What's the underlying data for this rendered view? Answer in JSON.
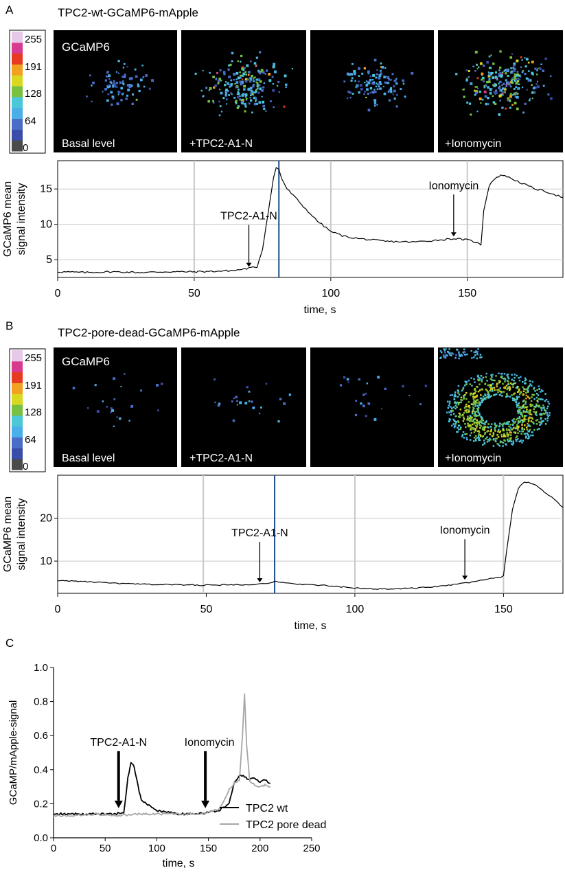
{
  "panels": [
    {
      "letter": "A",
      "title": "TPC2-wt-GCaMP6-mApple",
      "colorbar": {
        "ticks": [
          "255",
          "191",
          "128",
          "64",
          "0"
        ]
      },
      "images": [
        {
          "labels": [
            "GCaMP6",
            "Basal level"
          ],
          "intensity": 0.2,
          "mode": "spots"
        },
        {
          "labels": [
            "+TPC2-A1-N"
          ],
          "intensity": 0.75,
          "mode": "spots"
        },
        {
          "labels": [],
          "intensity": 0.35,
          "mode": "spots"
        },
        {
          "labels": [
            "+Ionomycin"
          ],
          "intensity": 0.85,
          "mode": "spots"
        }
      ]
    },
    {
      "letter": "B",
      "title": "TPC2-pore-dead-GCaMP6-mApple",
      "colorbar": {
        "ticks": [
          "255",
          "191",
          "128",
          "64",
          "0"
        ]
      },
      "images": [
        {
          "labels": [
            "GCaMP6",
            "Basal level"
          ],
          "intensity": 0.12,
          "mode": "sparse"
        },
        {
          "labels": [
            "+TPC2-A1-N"
          ],
          "intensity": 0.14,
          "mode": "sparse"
        },
        {
          "labels": [],
          "intensity": 0.1,
          "mode": "sparse"
        },
        {
          "labels": [
            "+Ionomycin"
          ],
          "intensity": 1.0,
          "mode": "ring"
        }
      ]
    },
    {
      "letter": "C"
    }
  ],
  "chart_data": [
    {
      "id": "A",
      "type": "line",
      "xlabel": "time, s",
      "ylabel": [
        "GCaMP6 mean",
        "signal intensity"
      ],
      "xlim": [
        0,
        185
      ],
      "ylim": [
        2.5,
        19
      ],
      "xticks": [
        0,
        50,
        100,
        150
      ],
      "yticks": [
        5,
        10,
        15
      ],
      "vlines_gray": [
        50,
        100,
        150
      ],
      "vline_blue": 81,
      "series": [
        {
          "color": "#000000",
          "x": [
            0,
            10,
            20,
            30,
            40,
            50,
            60,
            65,
            70,
            73,
            75,
            77,
            79,
            80,
            81,
            82,
            84,
            87,
            90,
            95,
            100,
            105,
            110,
            120,
            130,
            140,
            145,
            150,
            153,
            155,
            156,
            158,
            160,
            163,
            166,
            170,
            175,
            180,
            185
          ],
          "y": [
            3.3,
            3.2,
            3.3,
            3.2,
            3.3,
            3.3,
            3.4,
            3.5,
            3.8,
            4.0,
            6.5,
            11.5,
            16.5,
            18.0,
            17.8,
            16.5,
            15.0,
            13.8,
            12.5,
            10.5,
            9.0,
            8.3,
            8.0,
            7.6,
            7.5,
            7.8,
            8.0,
            7.8,
            7.5,
            7.1,
            12.0,
            15.5,
            16.5,
            17.0,
            16.5,
            15.8,
            15.0,
            14.5,
            13.8
          ]
        }
      ],
      "annotations": [
        {
          "text": "TPC2-A1-N",
          "x": 70,
          "y": 3.9
        },
        {
          "text": "Ionomycin",
          "x": 145,
          "y": 8.2
        }
      ]
    },
    {
      "id": "B",
      "type": "line",
      "xlabel": "time, s",
      "ylabel": [
        "GCaMP6 mean",
        "signal intensity"
      ],
      "xlim": [
        0,
        170
      ],
      "ylim": [
        2.5,
        30
      ],
      "xticks": [
        0,
        50,
        100,
        150
      ],
      "yticks": [
        10,
        20
      ],
      "vlines_gray": [
        49,
        100,
        150
      ],
      "vline_blue": 73,
      "series": [
        {
          "color": "#000000",
          "x": [
            0,
            10,
            20,
            30,
            40,
            50,
            60,
            65,
            70,
            73,
            75,
            80,
            90,
            100,
            110,
            120,
            130,
            140,
            145,
            148,
            150,
            151,
            153,
            155,
            157,
            160,
            163,
            166,
            170
          ],
          "y": [
            5.5,
            5.2,
            4.8,
            4.6,
            4.5,
            4.4,
            4.5,
            4.6,
            4.8,
            5.2,
            5.0,
            4.7,
            4.3,
            3.7,
            3.5,
            3.7,
            4.2,
            5.2,
            5.8,
            6.2,
            6.5,
            12.0,
            22.0,
            27.0,
            28.5,
            28.0,
            26.5,
            25.0,
            22.5
          ]
        }
      ],
      "annotations": [
        {
          "text": "TPC2-A1-N",
          "x": 68,
          "y": 4.9
        },
        {
          "text": "Ionomycin",
          "x": 137,
          "y": 5.5
        }
      ]
    },
    {
      "id": "C",
      "type": "line",
      "xlabel": "time, s",
      "ylabel": "GCaMP/mApple-signal",
      "xlim": [
        0,
        250
      ],
      "ylim": [
        0,
        1.0
      ],
      "xticks": [
        0,
        50,
        100,
        150,
        200,
        250
      ],
      "yticks": [
        0.0,
        0.2,
        0.4,
        0.6,
        0.8,
        1.0
      ],
      "series": [
        {
          "name": "TPC2 wt",
          "color": "#000000",
          "x": [
            0,
            20,
            40,
            60,
            68,
            72,
            75,
            78,
            82,
            85,
            90,
            95,
            100,
            110,
            120,
            130,
            140,
            150,
            160,
            170,
            175,
            180,
            185,
            190,
            195,
            200,
            205,
            210
          ],
          "y": [
            0.14,
            0.14,
            0.14,
            0.14,
            0.15,
            0.35,
            0.44,
            0.42,
            0.3,
            0.22,
            0.2,
            0.18,
            0.16,
            0.15,
            0.14,
            0.14,
            0.14,
            0.15,
            0.16,
            0.2,
            0.32,
            0.37,
            0.36,
            0.34,
            0.35,
            0.33,
            0.34,
            0.32
          ]
        },
        {
          "name": "TPC2 pore dead",
          "color": "#a6a6a6",
          "x": [
            0,
            20,
            40,
            60,
            80,
            100,
            120,
            140,
            150,
            160,
            165,
            170,
            175,
            180,
            183,
            185,
            187,
            190,
            195,
            200,
            205,
            210
          ],
          "y": [
            0.13,
            0.13,
            0.14,
            0.13,
            0.14,
            0.14,
            0.14,
            0.14,
            0.15,
            0.17,
            0.22,
            0.28,
            0.32,
            0.34,
            0.6,
            0.85,
            0.55,
            0.33,
            0.31,
            0.3,
            0.31,
            0.3
          ]
        }
      ],
      "annotations": [
        {
          "text": "TPC2-A1-N",
          "x": 63,
          "y": 0.17
        },
        {
          "text": "Ionomycin",
          "x": 147,
          "y": 0.17
        }
      ],
      "legend": "bottom-right"
    }
  ],
  "colors": {
    "lut": [
      "#4a4a4a",
      "#3a4da8",
      "#4a6ec8",
      "#4aaee8",
      "#4ac8d8",
      "#78c040",
      "#d8d820",
      "#f2a020",
      "#e83a20",
      "#d83a90",
      "#e8c8e8"
    ],
    "gridline": "#c8c8c8",
    "vline_blue": "#1f4e8a"
  }
}
